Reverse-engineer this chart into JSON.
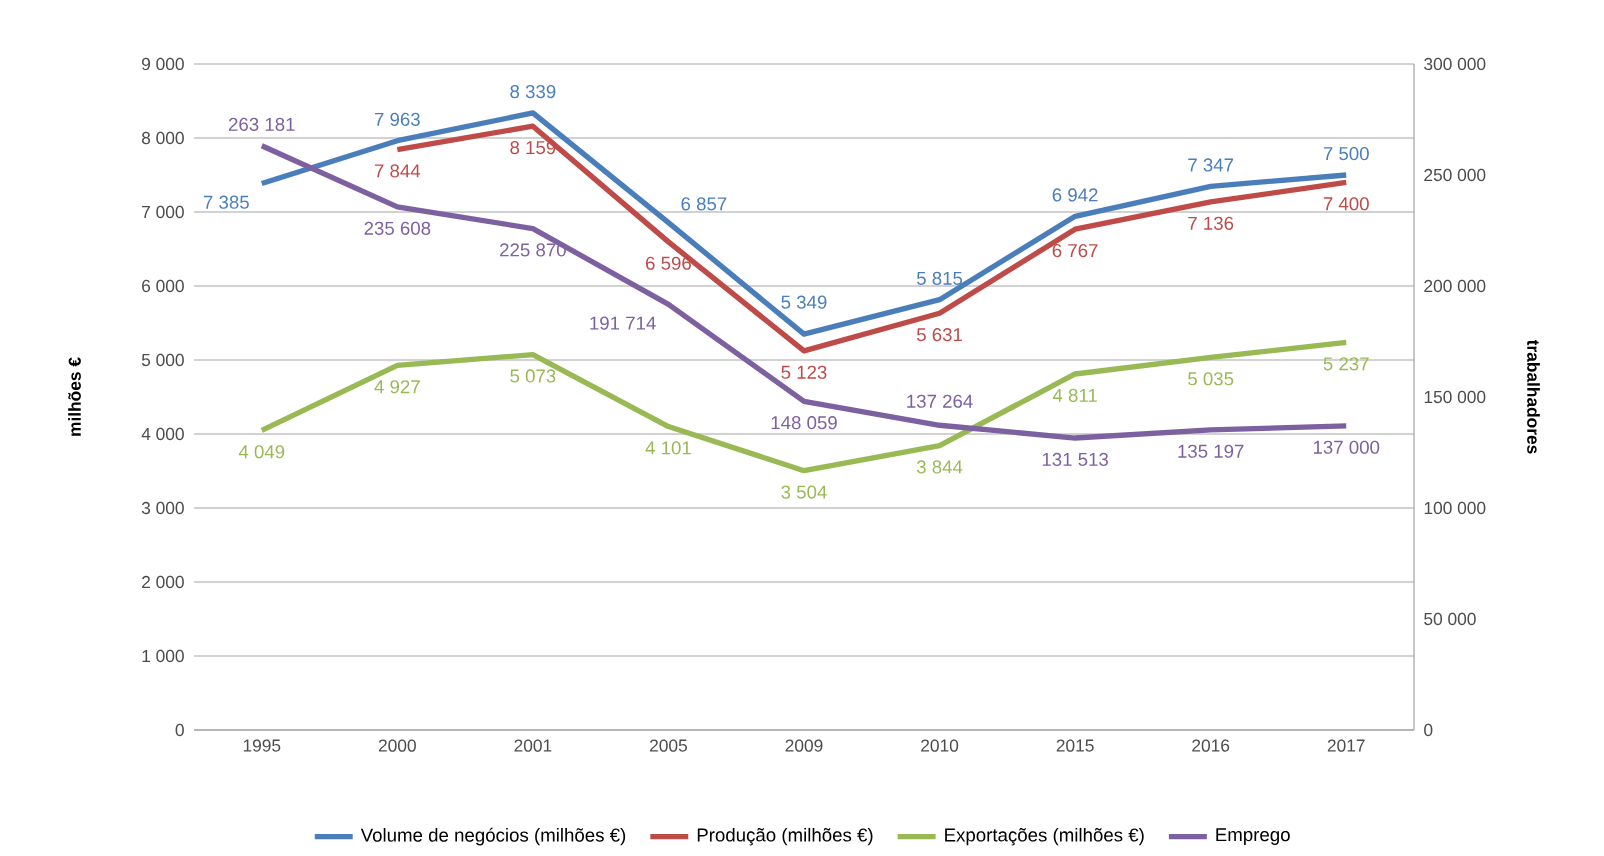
{
  "chart_data": {
    "type": "line",
    "xlabel": null,
    "ylabel": "milhões €",
    "y2label": "trabalhadores",
    "categories": [
      "1995",
      "2000",
      "2001",
      "2005",
      "2009",
      "2010",
      "2015",
      "2016",
      "2017"
    ],
    "series": [
      {
        "name": "Volume de negócios (milhões €)",
        "color": "#4a7ebb",
        "values": [
          7385,
          7963,
          8339,
          6857,
          5349,
          5815,
          6942,
          7347,
          7500
        ],
        "value_labels": [
          "7 385",
          "7 963",
          "8 339",
          "6 857",
          "5 349",
          "5 815",
          "6 942",
          "7 347",
          "7 500"
        ]
      },
      {
        "name": "Produção (milhões €)",
        "color": "#be4b48",
        "values": [
          null,
          7844,
          8159,
          6596,
          5123,
          5631,
          6767,
          7136,
          7400
        ],
        "value_labels": [
          null,
          "7 844",
          "8 159",
          "6 596",
          "5 123",
          "5 631",
          "6 767",
          "7 136",
          "7 400"
        ]
      },
      {
        "name": "Exportações (milhões €)",
        "color": "#98b954",
        "values": [
          4049,
          4927,
          5073,
          4101,
          3504,
          3844,
          4811,
          5035,
          5237
        ],
        "value_labels": [
          "4 049",
          "4 927",
          "5 073",
          "4 101",
          "3 504",
          "3 844",
          "4 811",
          "5 035",
          "5 237"
        ]
      },
      {
        "name": "Emprego",
        "color": "#7d60a0",
        "axis": "y2",
        "values": [
          263181,
          235608,
          225870,
          191714,
          148059,
          137264,
          131513,
          135197,
          137000
        ],
        "value_labels": [
          "263 181",
          "235 608",
          "225 870",
          "191 714",
          "148 059",
          "137 264",
          "131 513",
          "135 197",
          "137 000"
        ]
      }
    ],
    "ylim": [
      0,
      9000
    ],
    "yticks": [
      0,
      {
        "value": 1000,
        "label": "1 000"
      },
      {
        "value": 2000,
        "label": "2 000"
      },
      {
        "value": 3000,
        "label": "3 000"
      },
      {
        "value": 4000,
        "label": "4 000"
      },
      {
        "value": 5000,
        "label": "5 000"
      },
      {
        "value": 6000,
        "label": "6 000"
      },
      {
        "value": 7000,
        "label": "7 000"
      },
      {
        "value": 8000,
        "label": "8 000"
      },
      {
        "value": 9000,
        "label": "9 000"
      }
    ],
    "y2lim": [
      0,
      300000
    ],
    "y2ticks": [
      0,
      {
        "value": 50000,
        "label": "50 000"
      },
      {
        "value": 100000,
        "label": "100 000"
      },
      {
        "value": 150000,
        "label": "150 000"
      },
      {
        "value": 200000,
        "label": "200 000"
      },
      {
        "value": 250000,
        "label": "250 000"
      },
      {
        "value": 300000,
        "label": "300 000"
      }
    ],
    "grid": "y",
    "legend": "bottom",
    "marker": "none"
  }
}
